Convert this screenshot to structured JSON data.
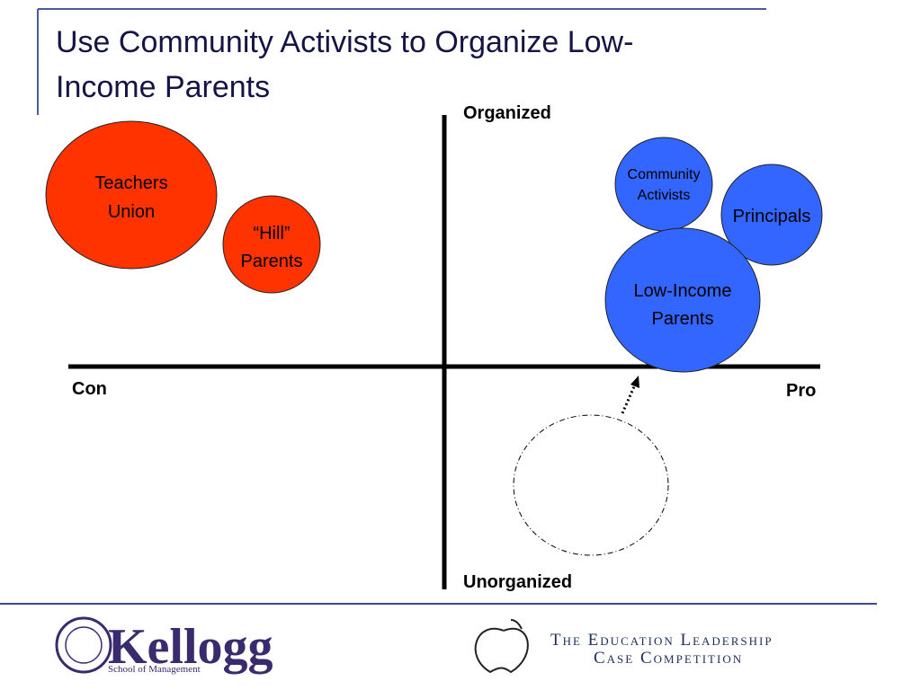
{
  "header": {
    "title_lines": [
      "Use Community Activists to Organize Low-",
      "Income Parents"
    ]
  },
  "axes": {
    "top": "Organized",
    "bottom": "Unorganized",
    "left": "Con",
    "right": "Pro"
  },
  "nodes": [
    {
      "lines": [
        "Teachers",
        "Union"
      ]
    },
    {
      "lines": [
        "“Hill”",
        "Parents"
      ]
    },
    {
      "lines": [
        "Community",
        "Activists"
      ]
    },
    {
      "lines": [
        "Principals"
      ]
    },
    {
      "lines": [
        "Low-Income",
        "Parents"
      ]
    }
  ],
  "footer": {
    "kellogg": "Kellogg",
    "kellogg_sub": "School of Management",
    "competition_lines": [
      "The Education Leadership",
      "Case Competition"
    ]
  }
}
